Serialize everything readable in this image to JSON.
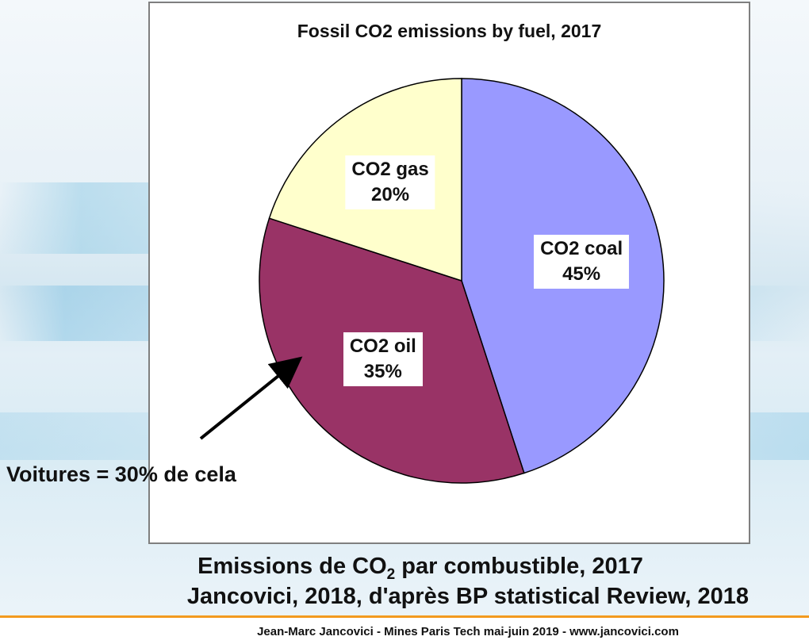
{
  "chart_data": {
    "type": "pie",
    "title": "Fossil CO2 emissions by fuel, 2017",
    "slices": [
      {
        "label": "CO2 coal",
        "value": 45,
        "value_label": "45%",
        "color": "#9999ff"
      },
      {
        "label": "CO2 oil",
        "value": 35,
        "value_label": "35%",
        "color": "#993366"
      },
      {
        "label": "CO2 gas",
        "value": 20,
        "value_label": "20%",
        "color": "#ffffcc"
      }
    ]
  },
  "annotation": "Voitures = 30% de cela",
  "caption": {
    "line1_pre": "Emissions de CO",
    "line1_sub": "2",
    "line1_post": " par combustible, 2017",
    "line2": "Jancovici, 2018, d'après BP statistical Review, 2018"
  },
  "footer": "Jean-Marc Jancovici - Mines Paris Tech mai-juin 2019 - www.jancovici.com",
  "colors": {
    "footer_line": "#f39a1f",
    "frame_border": "#7f7f7f"
  }
}
